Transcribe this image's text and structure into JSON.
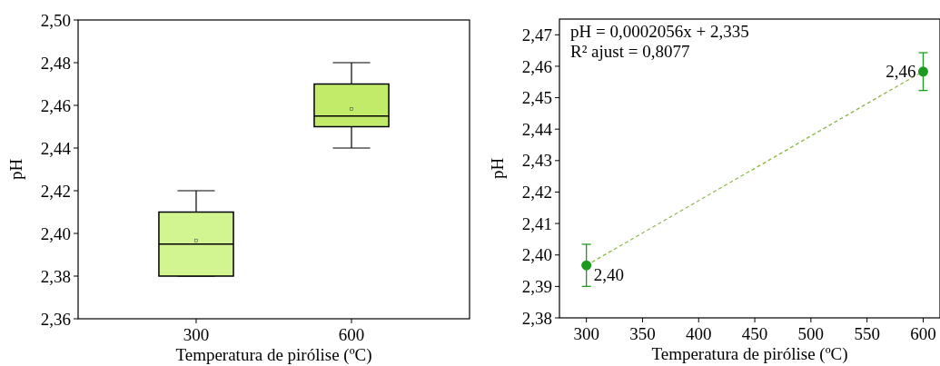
{
  "chart_data": [
    {
      "type": "box",
      "categories": [
        "300",
        "600"
      ],
      "xlabel": "Temperatura de pirólise (ºC)",
      "ylabel": "pH",
      "ylim": [
        2.36,
        2.5
      ],
      "colors": [
        "#d2f592",
        "#c2eb6a"
      ],
      "yticks": [
        {
          "value": 2.36,
          "label": "2,36"
        },
        {
          "value": 2.38,
          "label": "2,38"
        },
        {
          "value": 2.4,
          "label": "2,40"
        },
        {
          "value": 2.42,
          "label": "2,42"
        },
        {
          "value": 2.44,
          "label": "2,44"
        },
        {
          "value": 2.46,
          "label": "2,46"
        },
        {
          "value": 2.48,
          "label": "2,48"
        },
        {
          "value": 2.5,
          "label": "2,50"
        }
      ],
      "boxes": [
        {
          "low": 2.38,
          "q1": 2.38,
          "median": 2.395,
          "q3": 2.41,
          "high": 2.42,
          "mean": 2.3967
        },
        {
          "low": 2.44,
          "q1": 2.45,
          "median": 2.455,
          "q3": 2.47,
          "high": 2.48,
          "mean": 2.4583
        }
      ]
    },
    {
      "type": "scatter",
      "xlabel": "Temperatura de pirólise (ºC)",
      "ylabel": "pH",
      "x": [
        300,
        600
      ],
      "xlim": [
        276,
        615
      ],
      "ylim": [
        2.38,
        2.475
      ],
      "xticks": [
        300,
        350,
        400,
        450,
        500,
        550,
        600
      ],
      "yticks": [
        {
          "value": 2.38,
          "label": "2,38"
        },
        {
          "value": 2.39,
          "label": "2,39"
        },
        {
          "value": 2.4,
          "label": "2,40"
        },
        {
          "value": 2.41,
          "label": "2,41"
        },
        {
          "value": 2.42,
          "label": "2,42"
        },
        {
          "value": 2.43,
          "label": "2,43"
        },
        {
          "value": 2.44,
          "label": "2,44"
        },
        {
          "value": 2.45,
          "label": "2,45"
        },
        {
          "value": 2.46,
          "label": "2,46"
        },
        {
          "value": 2.47,
          "label": "2,47"
        }
      ],
      "annotations": [
        "pH = 0,0002056x + 2,335",
        "R² ajust = 0,8077"
      ],
      "series": [
        {
          "type": "line",
          "line_style": "dashed",
          "color": "#8db84a",
          "values": [
            2.3967,
            2.4584
          ]
        },
        {
          "type": "scatter",
          "marker": "circle",
          "color": "#1e9a1e",
          "values": [
            2.3967,
            2.4583
          ],
          "errors": [
            0.0067,
            0.006
          ],
          "value_labels": [
            "2,40",
            "2,46"
          ]
        }
      ]
    }
  ]
}
